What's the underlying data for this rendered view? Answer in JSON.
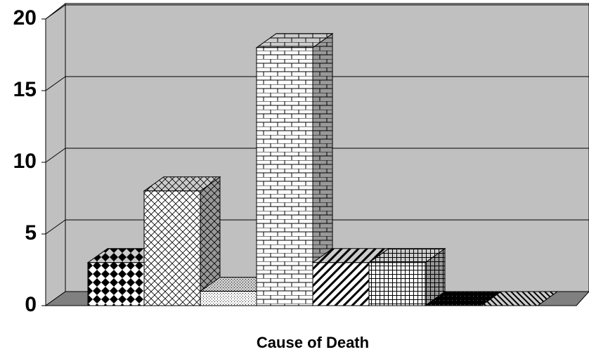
{
  "chart_data": {
    "type": "bar",
    "x_label": "Cause of Death",
    "categories": [
      null,
      null,
      null,
      null,
      null,
      null,
      null,
      null
    ],
    "values": [
      3,
      8,
      1,
      18,
      3,
      3,
      0,
      0
    ],
    "ylim": [
      0,
      20
    ],
    "yticks": [
      0,
      5,
      10,
      15,
      20
    ],
    "grid": true
  }
}
